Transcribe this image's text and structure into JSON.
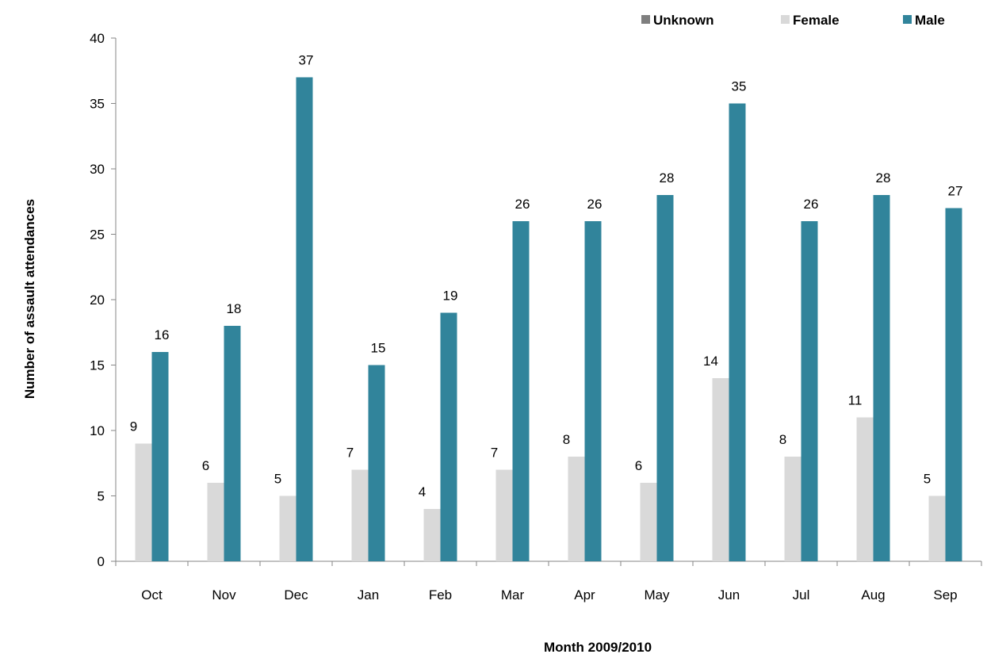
{
  "chart_data": {
    "type": "bar",
    "title": "",
    "xlabel": "Month 2009/2010",
    "ylabel": "Number of assault attendances",
    "ylim": [
      0,
      40
    ],
    "yticks": [
      0,
      5,
      10,
      15,
      20,
      25,
      30,
      35,
      40
    ],
    "grid": false,
    "legend_position": "top-right",
    "categories": [
      "Oct",
      "Nov",
      "Dec",
      "Jan",
      "Feb",
      "Mar",
      "Apr",
      "May",
      "Jun",
      "Jul",
      "Aug",
      "Sep"
    ],
    "series": [
      {
        "name": "Unknown",
        "color": "#7f7f7f",
        "values": [
          0,
          0,
          0,
          0,
          0,
          0,
          0,
          0,
          0,
          0,
          0,
          0
        ],
        "show_labels": false
      },
      {
        "name": "Female",
        "color": "#d9d9d9",
        "values": [
          9,
          6,
          5,
          7,
          4,
          7,
          8,
          6,
          14,
          8,
          11,
          5
        ],
        "show_labels": true
      },
      {
        "name": "Male",
        "color": "#31849b",
        "values": [
          16,
          18,
          37,
          15,
          19,
          26,
          26,
          28,
          35,
          26,
          28,
          27
        ],
        "show_labels": true
      }
    ]
  }
}
